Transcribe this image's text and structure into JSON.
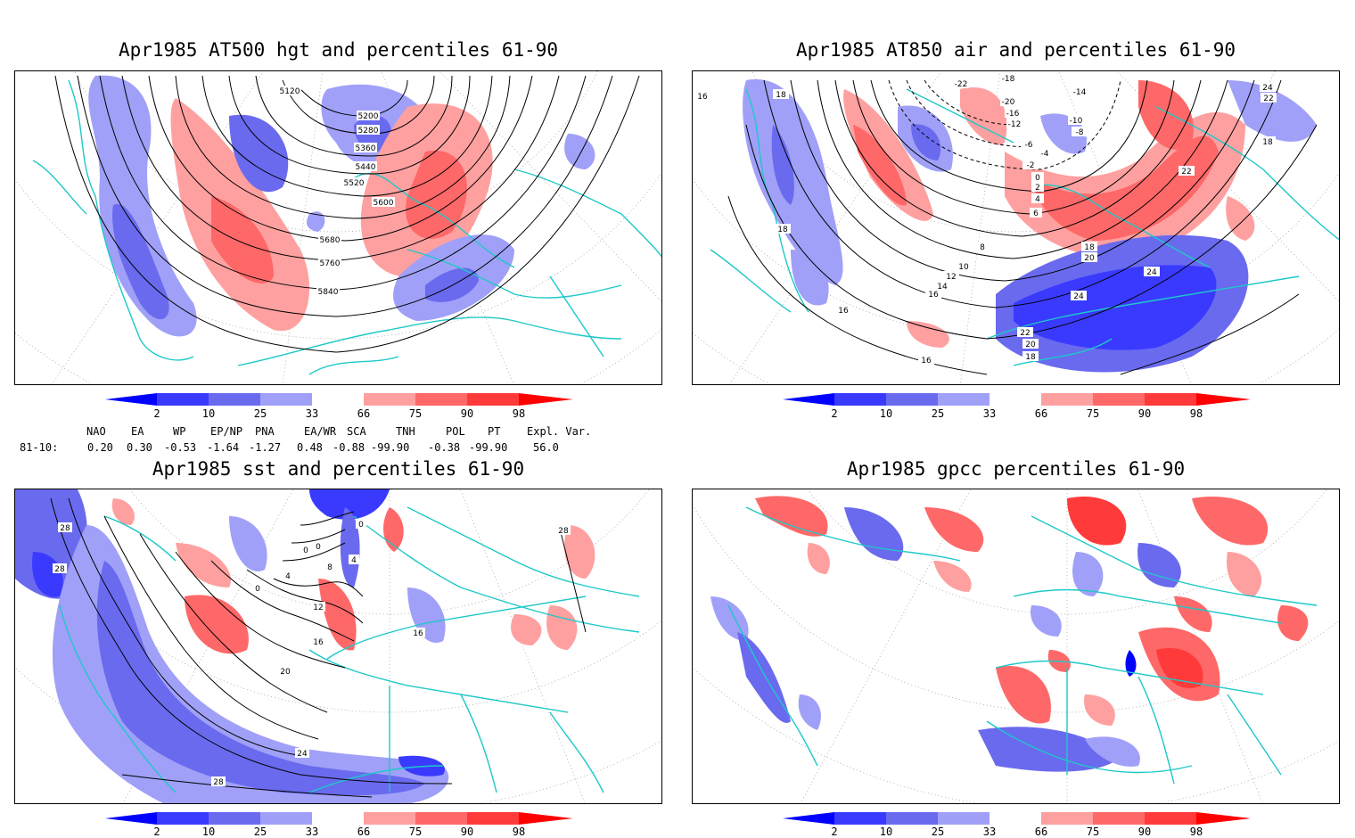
{
  "panels": {
    "p500": {
      "title": "Apr1985 AT500 hgt and percentiles 61-90"
    },
    "p850": {
      "title": "Apr1985 AT850 air and percentiles 61-90"
    },
    "sst": {
      "title": "Apr1985 sst and percentiles 61-90"
    },
    "gpcc": {
      "title": "Apr1985 gpcc percentiles 61-90"
    }
  },
  "colorbar": {
    "labels": [
      "2",
      "10",
      "25",
      "33",
      "66",
      "75",
      "90",
      "98"
    ],
    "colors": [
      "#0000ff",
      "#3a3aff",
      "#6a6aef",
      "#a0a0f8",
      "#ffffff",
      "#ffa0a0",
      "#ff6868",
      "#ff3a3a",
      "#ff0000"
    ]
  },
  "indices": {
    "headers": [
      "NAO",
      "EA",
      "WP",
      "EP/NP",
      "PNA",
      "EA/WR",
      "SCA",
      "TNH",
      "POL",
      "PT",
      "Expl. Var."
    ],
    "row_label": "81-10:",
    "values": [
      "0.20",
      "0.30",
      "-0.53",
      "-1.64",
      "-1.27",
      "0.48",
      "-0.88",
      "-99.90",
      "-0.38",
      "-99.90",
      "56.0"
    ]
  },
  "contour_labels": {
    "p500": [
      "5120",
      "5200",
      "5280",
      "5360",
      "5440",
      "5520",
      "5600",
      "5680",
      "5760",
      "5840"
    ],
    "p850": [
      "-22",
      "-18",
      "-20",
      "-16",
      "-14",
      "-12",
      "-10",
      "-8",
      "-6",
      "-4",
      "-2",
      "0",
      "2",
      "4",
      "6",
      "8",
      "10",
      "12",
      "14",
      "16",
      "16",
      "16",
      "18",
      "18",
      "18",
      "18",
      "20",
      "20",
      "22",
      "22",
      "22",
      "24",
      "24",
      "24",
      "16",
      "18"
    ],
    "sst": [
      "28",
      "28",
      "0",
      "0",
      "0",
      "4",
      "8",
      "12",
      "16",
      "20",
      "24",
      "28",
      "16",
      "28",
      "4",
      "0"
    ]
  }
}
